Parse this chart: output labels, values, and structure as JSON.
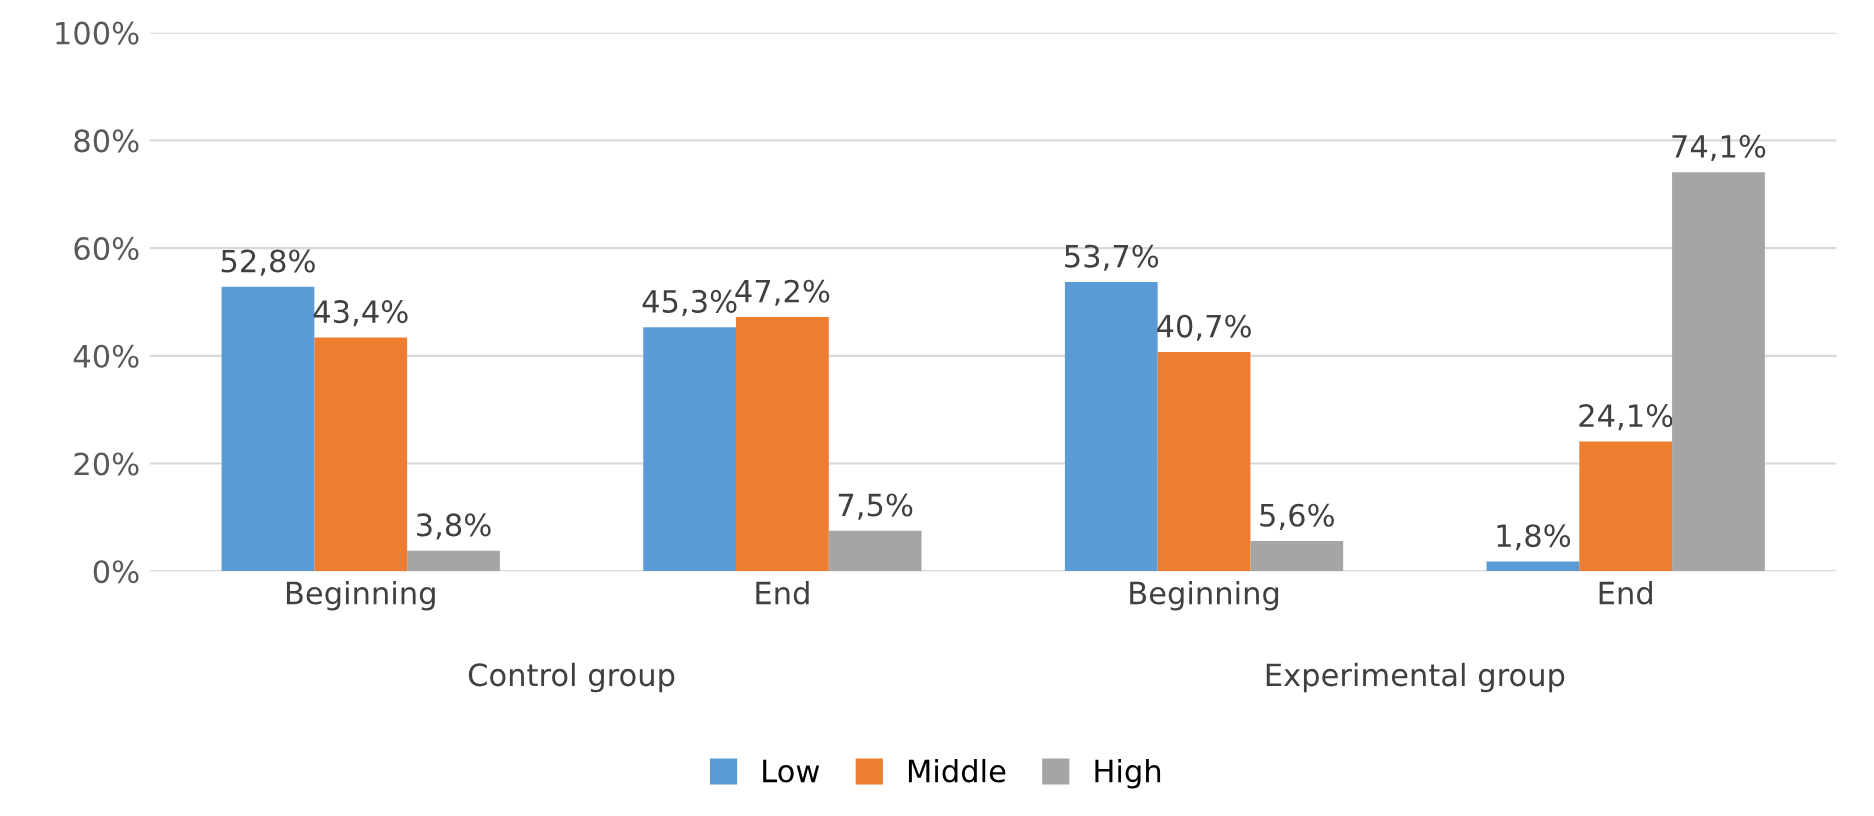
{
  "chart_data": {
    "type": "bar",
    "categories": [
      "Beginning",
      "End",
      "Beginning",
      "End"
    ],
    "series": [
      {
        "name": "Low",
        "color": "#5b9bd5",
        "values": [
          52.8,
          45.3,
          53.7,
          1.8
        ],
        "value_labels": [
          "52,8%",
          "45,3%",
          "53,7%",
          "1,8%"
        ]
      },
      {
        "name": "Middle",
        "color": "#ed7d31",
        "values": [
          43.4,
          47.2,
          40.7,
          24.1
        ],
        "value_labels": [
          "43,4%",
          "47,2%",
          "40,7%",
          "24,1%"
        ]
      },
      {
        "name": "High",
        "color": "#a5a5a5",
        "values": [
          3.8,
          7.5,
          5.6,
          74.1
        ],
        "value_labels": [
          "3,8%",
          "7,5%",
          "5,6%",
          "74,1%"
        ]
      }
    ],
    "annotations": [
      "Control group",
      "Experimental group"
    ],
    "ylim": [
      0,
      100
    ],
    "yticks": [
      {
        "value": 0,
        "label": "0%"
      },
      {
        "value": 20,
        "label": "20%"
      },
      {
        "value": 40,
        "label": "40%"
      },
      {
        "value": 60,
        "label": "60%"
      },
      {
        "value": 80,
        "label": "80%"
      },
      {
        "value": 100,
        "label": "100%"
      }
    ],
    "grid": "y",
    "legend": "bottom"
  }
}
